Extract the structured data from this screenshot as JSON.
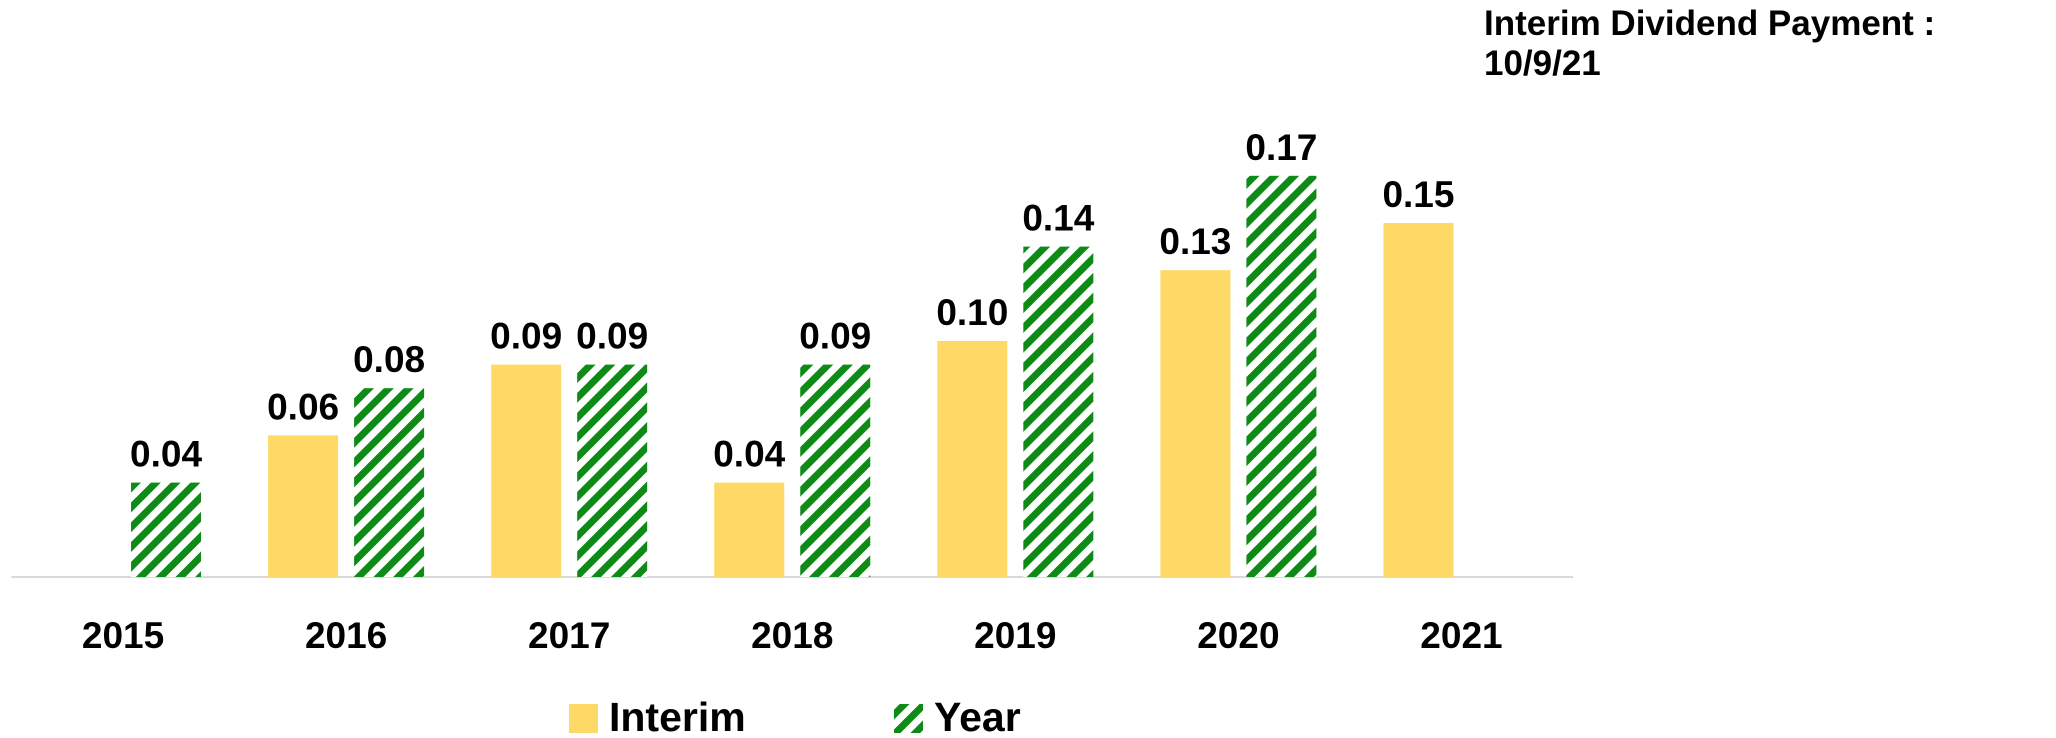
{
  "chart_data": {
    "type": "bar",
    "annotation": "Interim Dividend Payment : 10/9/21",
    "categories": [
      "2015",
      "2016",
      "2017",
      "2018",
      "2019",
      "2020",
      "2021"
    ],
    "series": [
      {
        "name": "Interim",
        "color": "#FFD966",
        "pattern": "solid",
        "values": [
          null,
          0.06,
          0.09,
          0.04,
          0.1,
          0.13,
          0.15
        ],
        "value_labels": [
          null,
          "0.06",
          "0.09",
          "0.04",
          "0.10",
          "0.13",
          "0.15"
        ]
      },
      {
        "name": "Year",
        "color": "#0E8A16",
        "pattern": "hatch",
        "values": [
          0.04,
          0.08,
          0.09,
          0.09,
          0.14,
          0.17,
          null
        ],
        "value_labels": [
          "0.04",
          "0.08",
          "0.09",
          "0.09",
          "0.14",
          "0.17",
          null
        ]
      }
    ],
    "ylim": [
      0,
      0.2
    ]
  }
}
